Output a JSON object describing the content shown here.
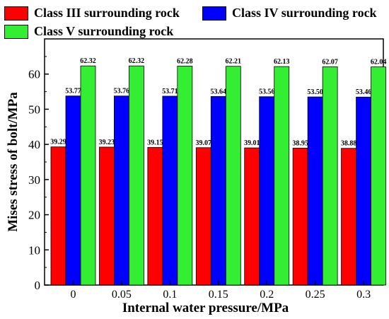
{
  "chart_data": {
    "type": "bar",
    "xlabel": "Internal water pressure/MPa",
    "ylabel": "Mises stress of bolt/MPa",
    "categories": [
      "0",
      "0.05",
      "0.1",
      "0.15",
      "0.2",
      "0.25",
      "0.3"
    ],
    "ylim": [
      0,
      70
    ],
    "yticks": [
      0,
      10,
      20,
      30,
      40,
      50,
      60
    ],
    "legend_position": "top",
    "series": [
      {
        "name": "Class III surrounding rock",
        "color": "#ff0000",
        "values": [
          39.29,
          39.23,
          39.15,
          39.07,
          39.01,
          38.95,
          38.88
        ],
        "labels": [
          "39.29",
          "39.23",
          "39.15",
          "39.07",
          "39.01",
          "38.95",
          "38.88"
        ]
      },
      {
        "name": "Class IV surrounding rock",
        "color": "#0000ff",
        "values": [
          53.77,
          53.76,
          53.71,
          53.64,
          53.56,
          53.5,
          53.46
        ],
        "labels": [
          "53.77",
          "53.76",
          "53.71",
          "53.64",
          "53.56",
          "53.50",
          "53.46"
        ]
      },
      {
        "name": "Class V surrounding rock",
        "color": "#33ee33",
        "values": [
          62.32,
          62.32,
          62.28,
          62.21,
          62.13,
          62.07,
          62.04
        ],
        "labels": [
          "62.32",
          "62.32",
          "62.28",
          "62.21",
          "62.13",
          "62.07",
          "62.04"
        ]
      }
    ]
  }
}
